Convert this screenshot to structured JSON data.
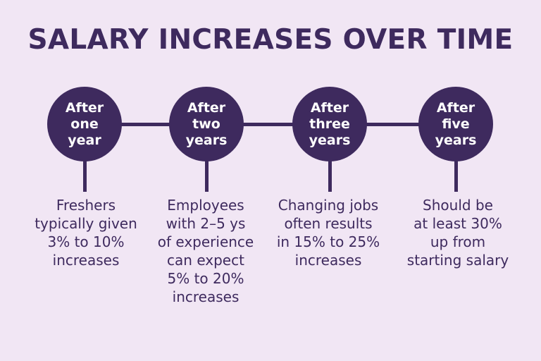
{
  "title": "SALARY INCREASES OVER TIME",
  "colors": {
    "background": "#f1e6f4",
    "accent": "#3e2a5e",
    "circle_text": "#ffffff"
  },
  "milestones": [
    {
      "label": "After\none\nyear",
      "description": "Freshers\ntypically given\n3% to 10%\nincreases"
    },
    {
      "label": "After\ntwo\nyears",
      "description": "Employees\nwith 2–5 ys\nof experience\ncan expect\n5% to 20%\nincreases"
    },
    {
      "label": "After\nthree\nyears",
      "description": "Changing jobs\noften results\nin 15% to 25%\nincreases"
    },
    {
      "label": "After\nfive\nyears",
      "description": "Should be\nat least 30%\nup from\nstarting salary"
    }
  ]
}
